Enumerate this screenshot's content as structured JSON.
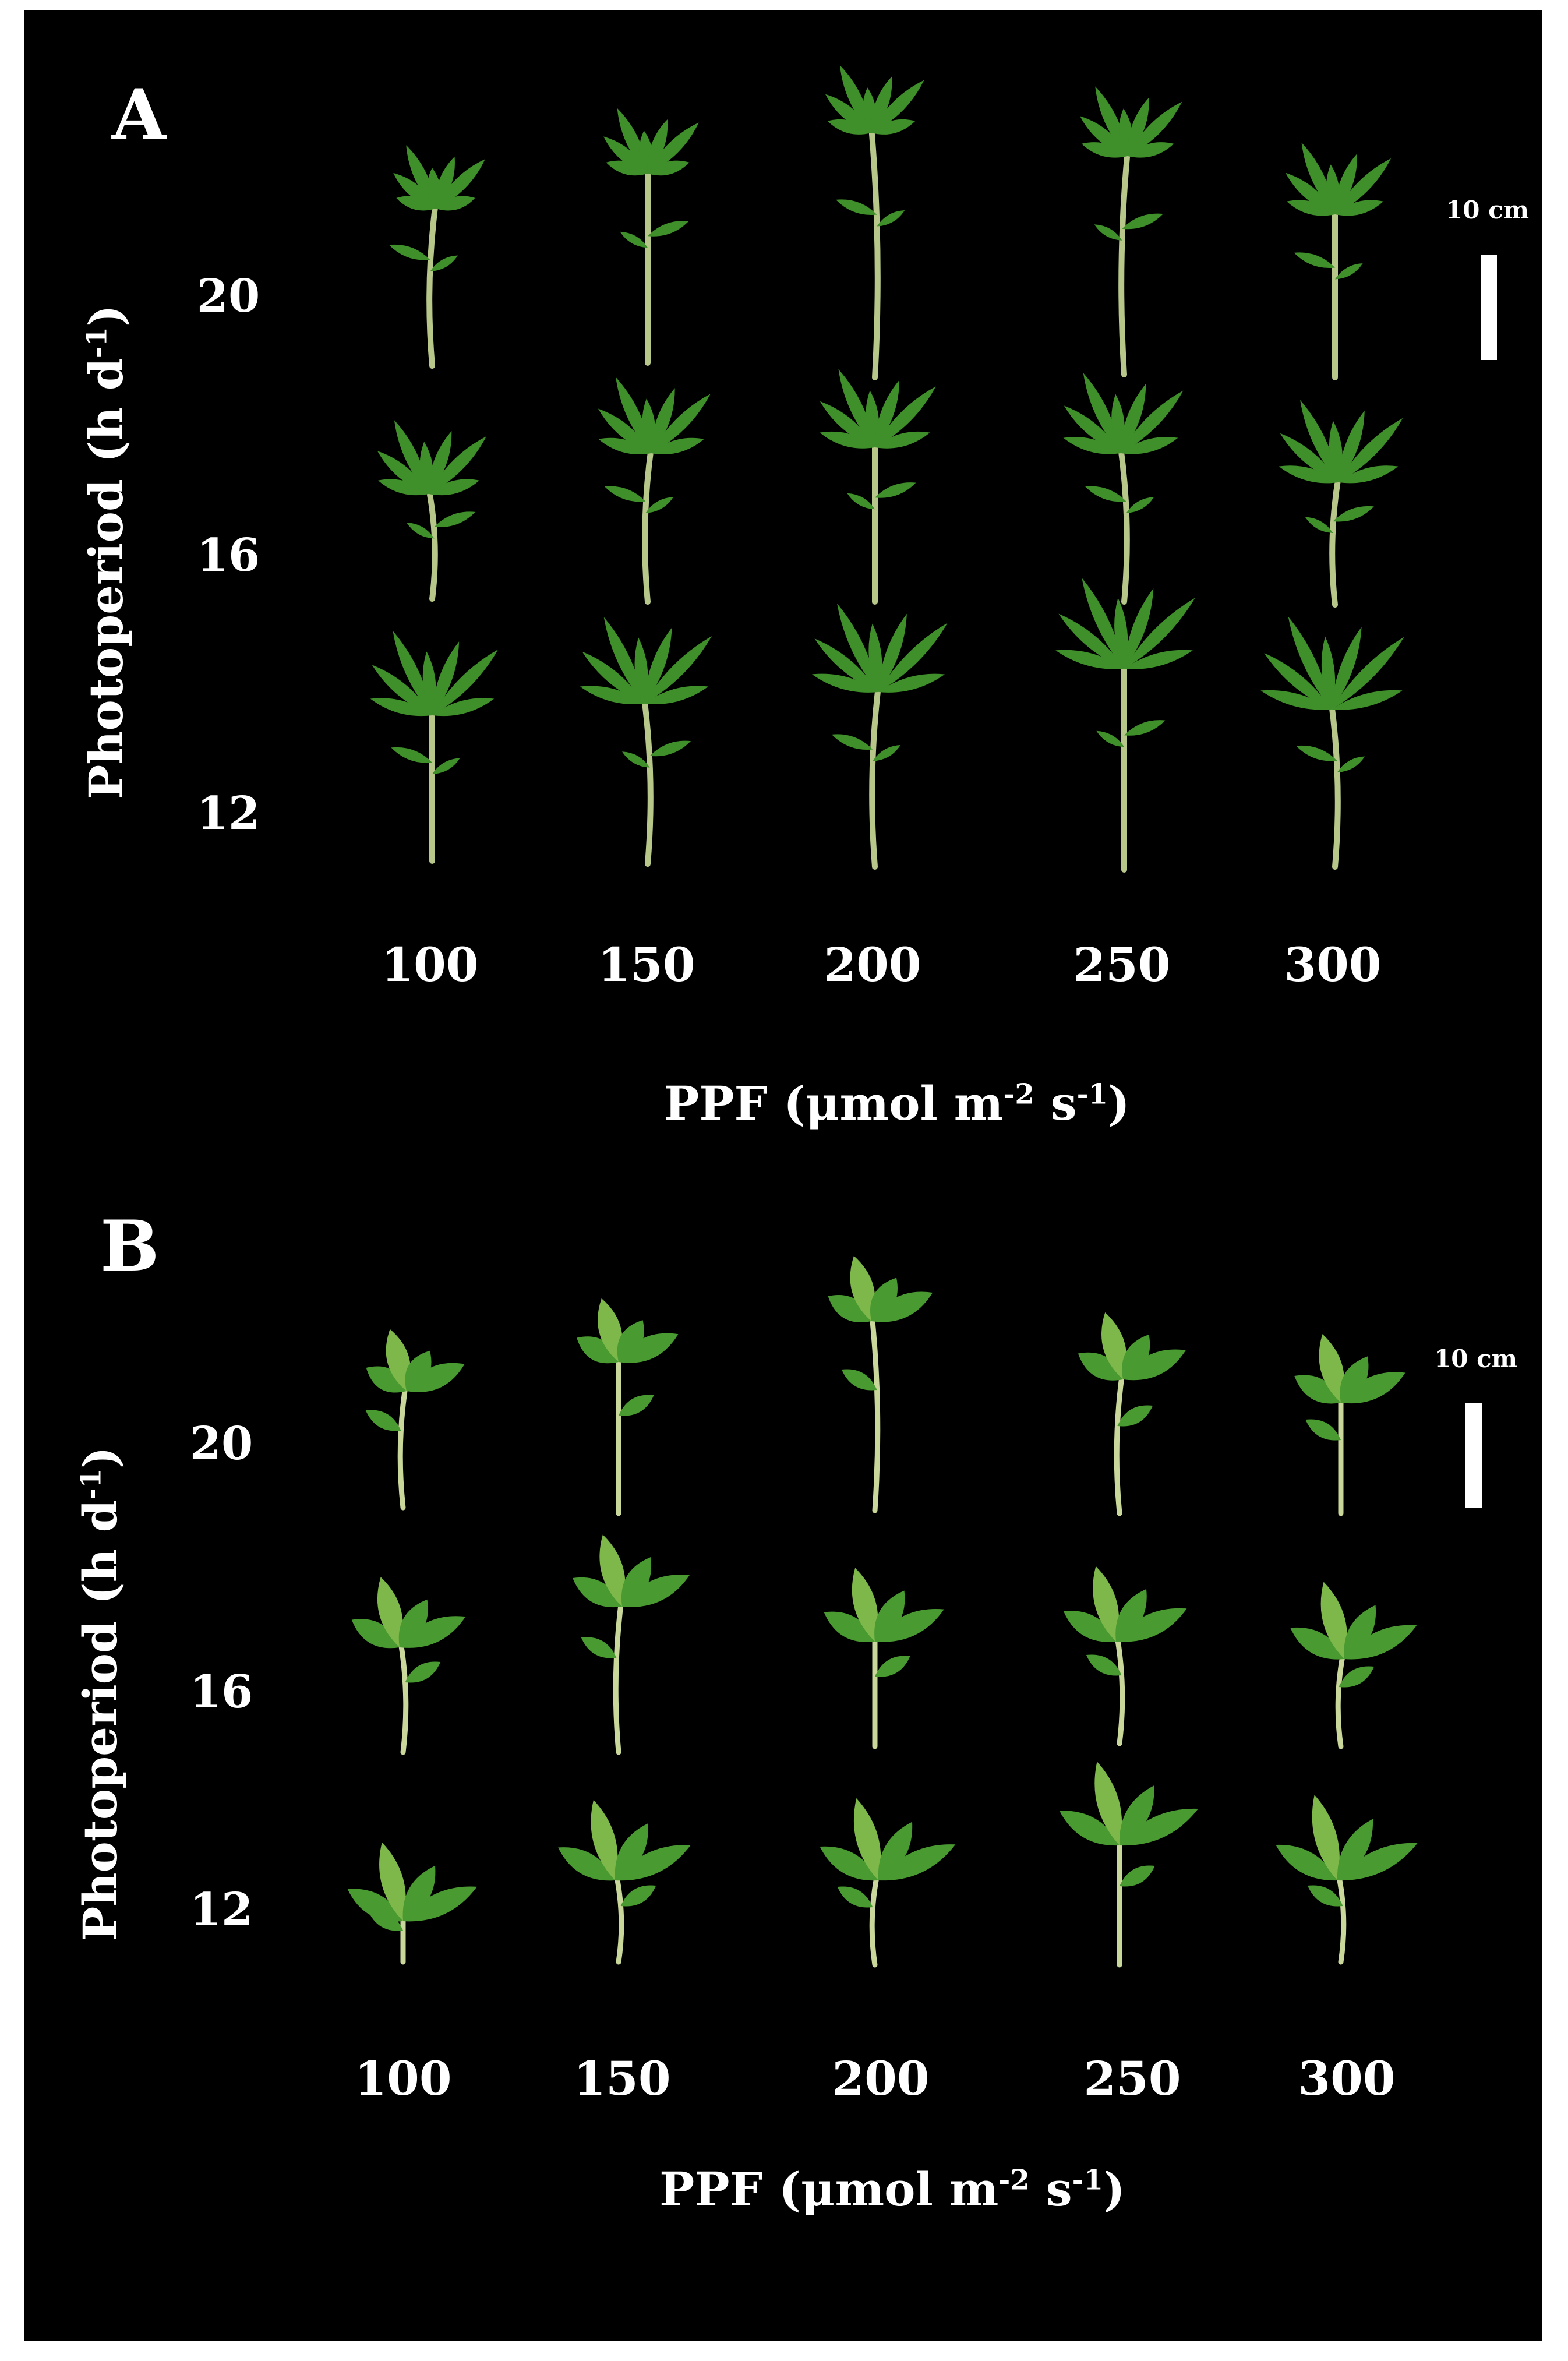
{
  "panels": [
    {
      "letter": "A",
      "y_axis_title": "Photoperiod (h d",
      "y_axis_sup": "-1",
      "y_axis_close": ")",
      "rows": [
        "20",
        "16",
        "12"
      ],
      "columns": [
        "100",
        "150",
        "200",
        "250",
        "300"
      ],
      "x_axis_title": "PPF (μmol m",
      "x_axis_sup1": "-2",
      "x_axis_mid": " s",
      "x_axis_sup2": "-1",
      "x_axis_close": ")",
      "scale_label": "10 cm",
      "plant_type": "tomato-seedling",
      "colors": {
        "background": "#000000",
        "stem": "#b7c78a",
        "leaf": "#3f8f2a"
      }
    },
    {
      "letter": "B",
      "y_axis_title": "Photoperiod (h d",
      "y_axis_sup": "-1",
      "y_axis_close": ")",
      "rows": [
        "20",
        "16",
        "12"
      ],
      "columns": [
        "100",
        "150",
        "200",
        "250",
        "300"
      ],
      "x_axis_title": "PPF (μmol m",
      "x_axis_sup1": "-2",
      "x_axis_mid": " s",
      "x_axis_sup2": "-1",
      "x_axis_close": ")",
      "scale_label": "10 cm",
      "plant_type": "pepper-seedling",
      "colors": {
        "background": "#000000",
        "stem": "#c9d79a",
        "leaf": "#4a9a32"
      }
    }
  ]
}
